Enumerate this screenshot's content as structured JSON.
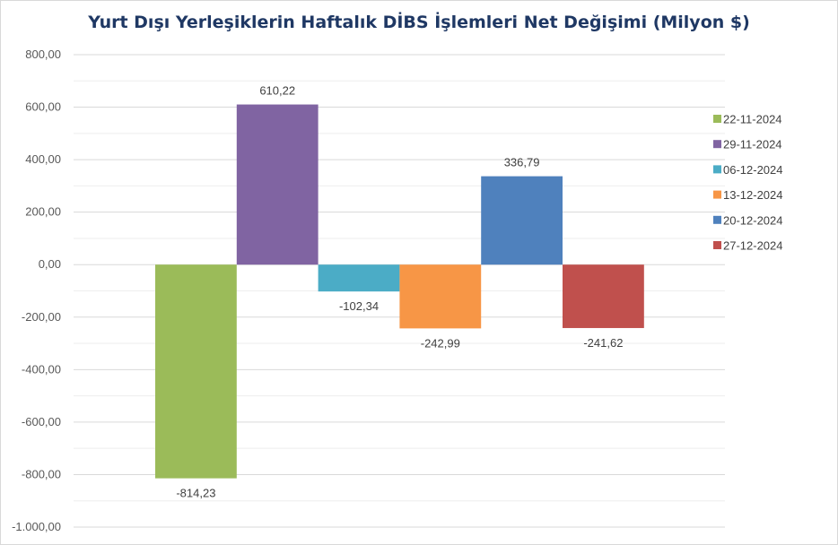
{
  "chart_data": {
    "type": "bar",
    "title": "Yurt Dışı Yerleşiklerin Haftalık DİBS İşlemleri Net Değişimi (Milyon $)",
    "xlabel": "",
    "ylabel": "",
    "ylim": [
      -1000,
      800
    ],
    "yticks": [
      800,
      600,
      400,
      200,
      0,
      -200,
      -400,
      -600,
      -800,
      -1000
    ],
    "ytick_labels": [
      "800,00",
      "600,00",
      "400,00",
      "200,00",
      "0,00",
      "-200,00",
      "-400,00",
      "-600,00",
      "-800,00",
      "-1.000,00"
    ],
    "grid": true,
    "legend_position": "right",
    "series": [
      {
        "name": "22-11-2024",
        "value": -814.23,
        "label": "-814,23",
        "color": "#9bbb59"
      },
      {
        "name": "29-11-2024",
        "value": 610.22,
        "label": "610,22",
        "color": "#8064a2"
      },
      {
        "name": "06-12-2024",
        "value": -102.34,
        "label": "-102,34",
        "color": "#4bacc6"
      },
      {
        "name": "13-12-2024",
        "value": -242.99,
        "label": "-242,99",
        "color": "#f79646"
      },
      {
        "name": "20-12-2024",
        "value": 336.79,
        "label": "336,79",
        "color": "#4f81bd"
      },
      {
        "name": "27-12-2024",
        "value": -241.62,
        "label": "-241,62",
        "color": "#c0504d"
      }
    ]
  }
}
